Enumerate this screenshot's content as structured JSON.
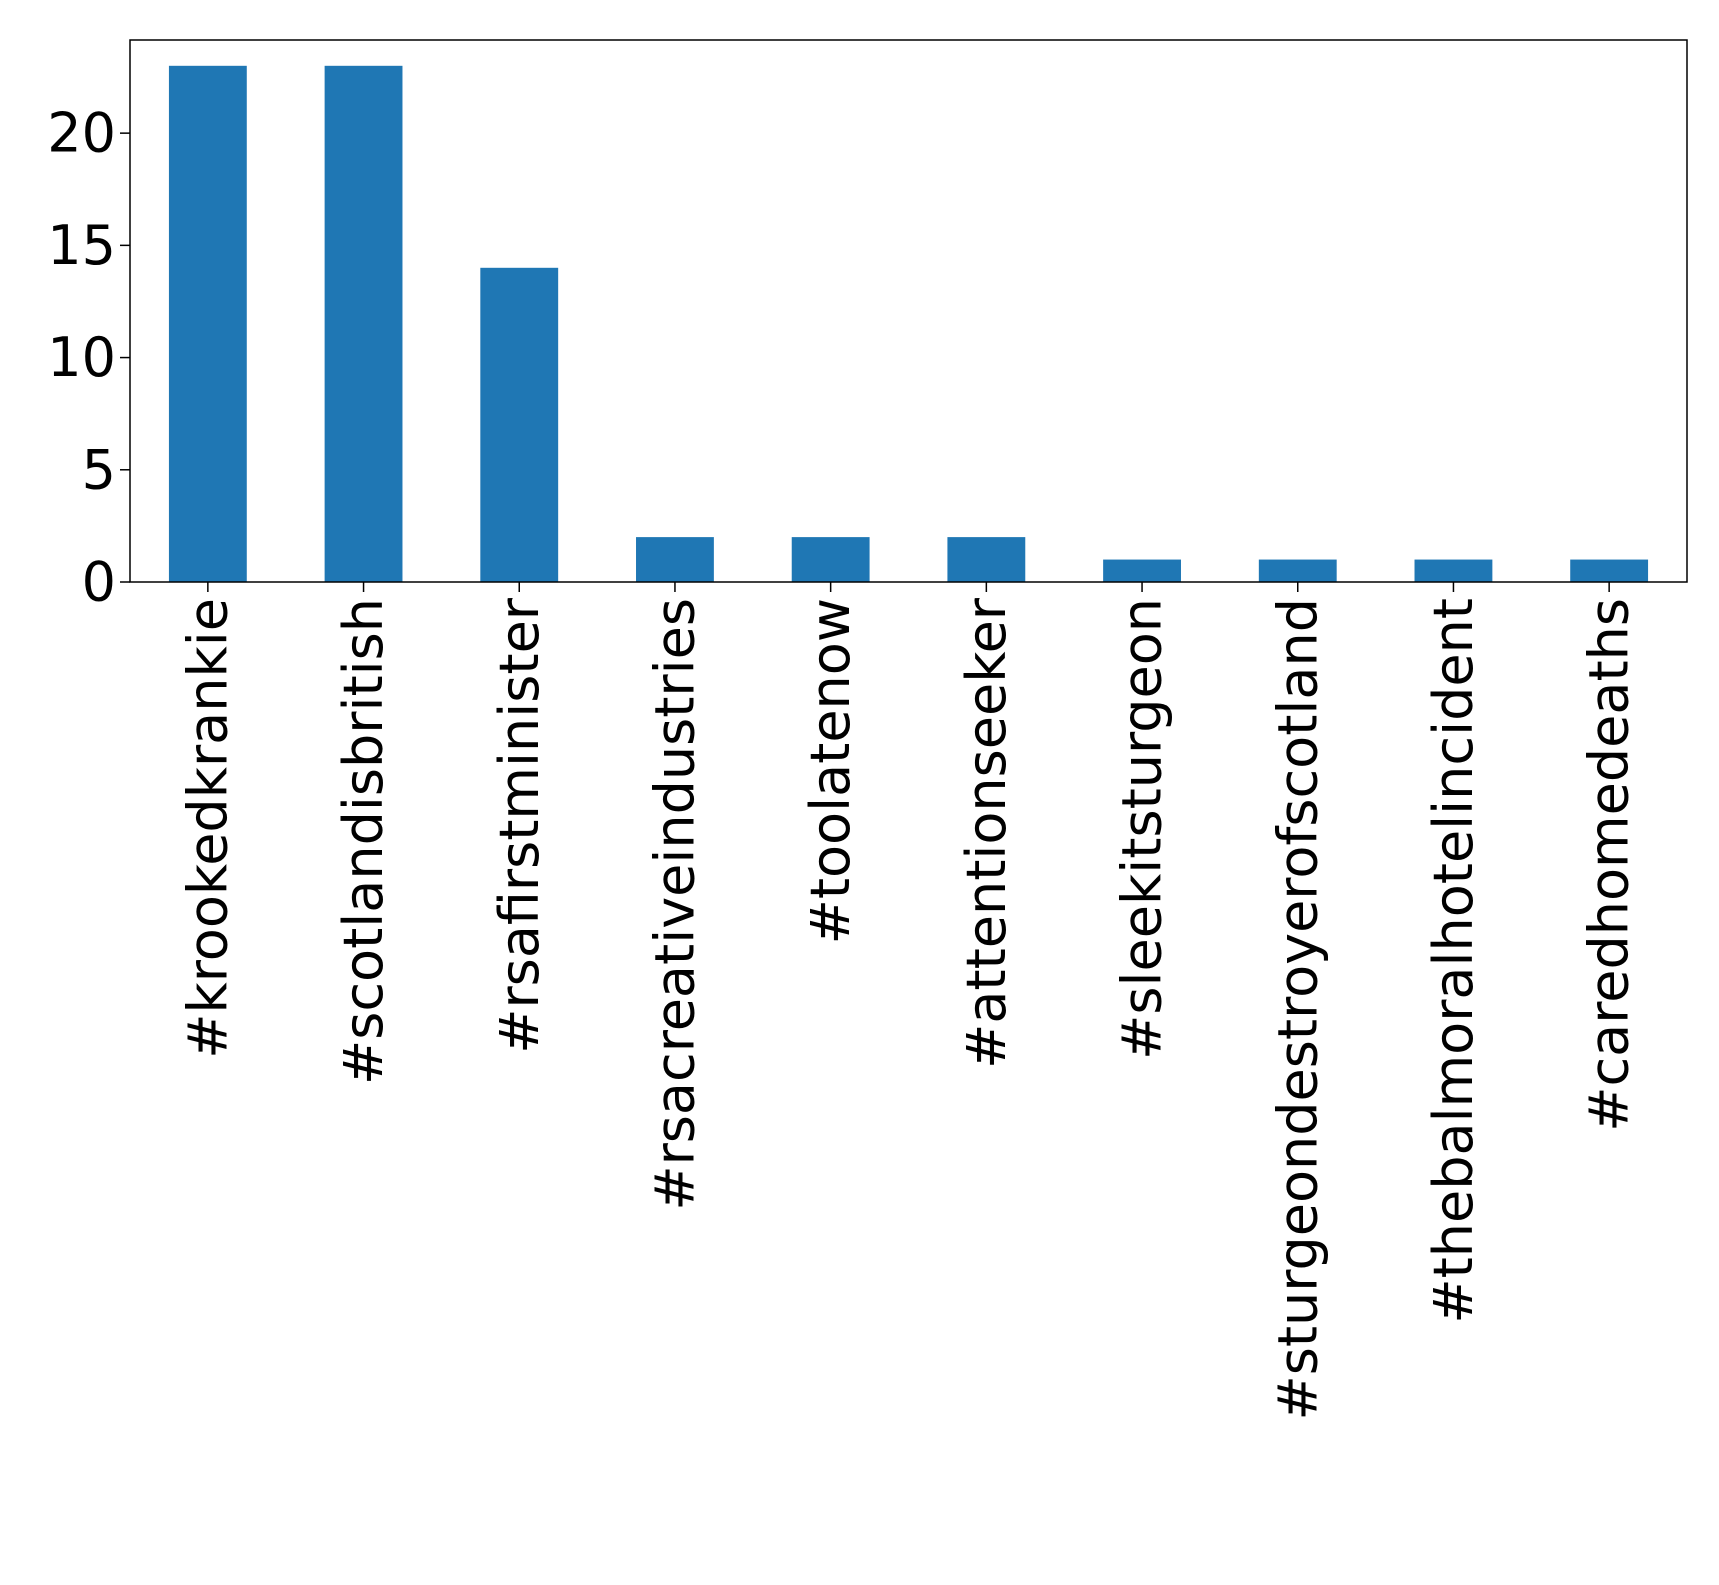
{
  "chart_data": {
    "type": "bar",
    "categories": [
      "#krookedkrankie",
      "#scotlandisbritish",
      "#rsafirstminister",
      "#rsacreativeindustries",
      "#toolatenow",
      "#attentionseeker",
      "#sleekitsturgeon",
      "#sturgeondestroyerofscotland",
      "#thebalmoralhotelincident",
      "#caredhomedeaths"
    ],
    "values": [
      23,
      23,
      14,
      2,
      2,
      2,
      1,
      1,
      1,
      1
    ],
    "ylim": [
      0,
      24.15
    ],
    "yticks": [
      0,
      5,
      10,
      15,
      20
    ],
    "ytick_labels": [
      "0",
      "5",
      "10",
      "15",
      "20"
    ],
    "grid": false,
    "bar_color": "#1f77b4",
    "title": "",
    "xlabel": "",
    "ylabel": ""
  }
}
